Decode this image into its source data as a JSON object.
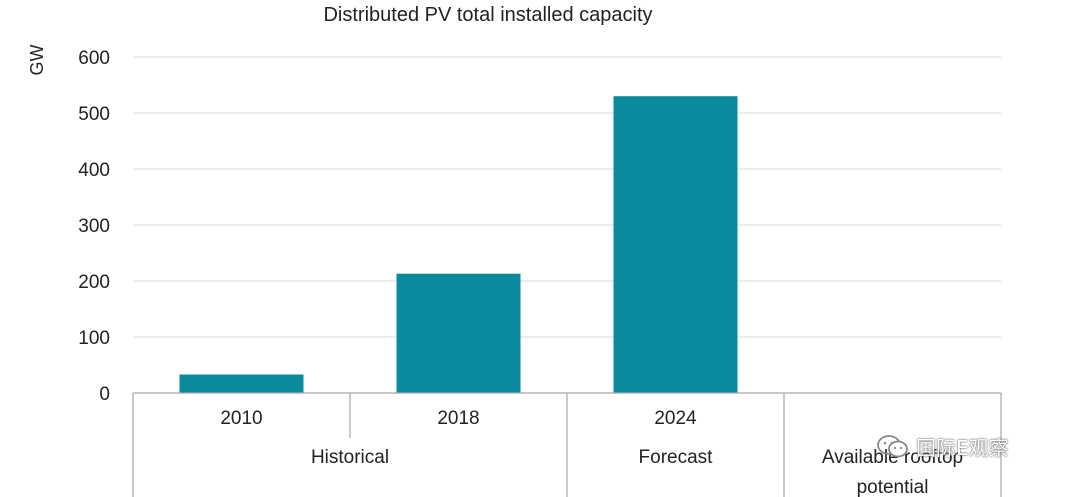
{
  "chart_data": {
    "type": "bar",
    "title": "Distributed PV total installed capacity",
    "ylabel": "GW",
    "xlabel": "",
    "ylim": [
      0,
      600
    ],
    "yticks": [
      0,
      100,
      200,
      300,
      400,
      500,
      600
    ],
    "grid": true,
    "categories": [
      "2010",
      "2018",
      "2024",
      ""
    ],
    "values": [
      33,
      213,
      530,
      null
    ],
    "groups": [
      {
        "label": "Historical",
        "categories": [
          "2010",
          "2018"
        ]
      },
      {
        "label": "Forecast",
        "categories": [
          "2024"
        ]
      },
      {
        "label": "Available rooftop\npotential",
        "categories": [
          ""
        ]
      }
    ],
    "bar_color": "#0a8a9c"
  },
  "watermark": {
    "text": "国际E观察",
    "icon": "wechat-icon"
  }
}
